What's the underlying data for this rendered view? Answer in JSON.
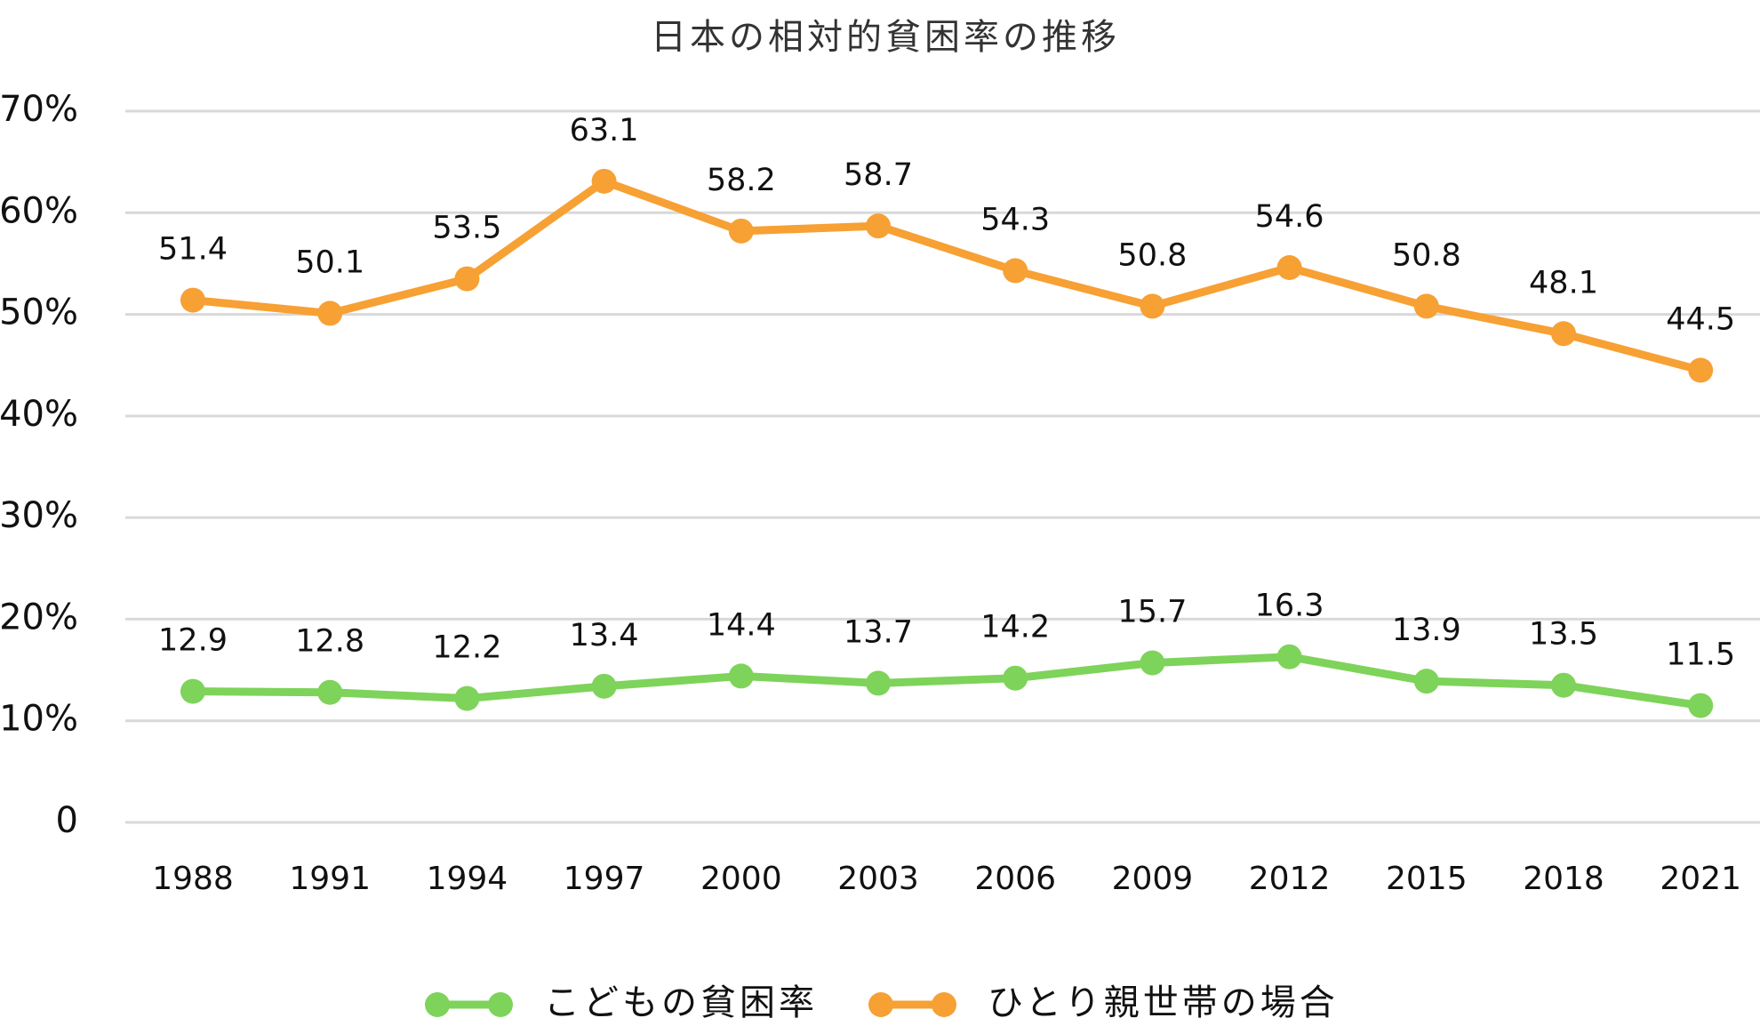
{
  "chart_data": {
    "type": "line",
    "title": "日本の相対的貧困率の推移",
    "categories": [
      "1988",
      "1991",
      "1994",
      "1997",
      "2000",
      "2003",
      "2006",
      "2009",
      "2012",
      "2015",
      "2018",
      "2021"
    ],
    "series": [
      {
        "name": "こどもの貧困率",
        "color": "#7ed35a",
        "values": [
          12.9,
          12.8,
          12.2,
          13.4,
          14.4,
          13.7,
          14.2,
          15.7,
          16.3,
          13.9,
          13.5,
          11.5
        ]
      },
      {
        "name": "ひとり親世帯の場合",
        "color": "#f7a034",
        "values": [
          51.4,
          50.1,
          53.5,
          63.1,
          58.2,
          58.7,
          54.3,
          50.8,
          54.6,
          50.8,
          48.1,
          44.5
        ]
      }
    ],
    "ylim": [
      0,
      70
    ],
    "yticks": [
      0,
      {
        "value": 10,
        "label": "10%"
      },
      {
        "value": 20,
        "label": "20%"
      },
      {
        "value": 30,
        "label": "30%"
      },
      {
        "value": 40,
        "label": "40%"
      },
      {
        "value": 50,
        "label": "50%"
      },
      {
        "value": 60,
        "label": "60%"
      },
      {
        "value": 70,
        "label": "70%"
      }
    ],
    "grid": true,
    "legend": "bottom"
  }
}
